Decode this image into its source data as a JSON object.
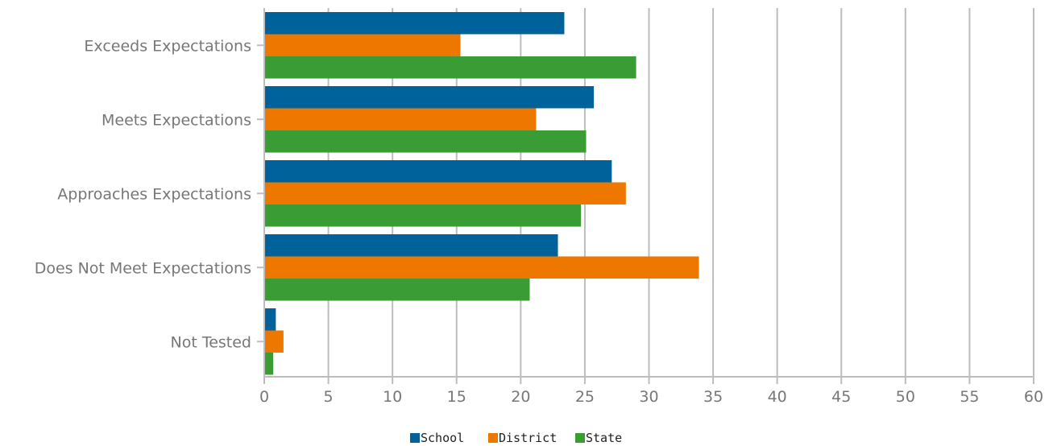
{
  "chart_data": {
    "type": "bar",
    "orientation": "horizontal",
    "categories": [
      "Exceeds Expectations",
      "Meets Expectations",
      "Approaches Expectations",
      "Does Not Meet Expectations",
      "Not Tested"
    ],
    "series": [
      {
        "name": "School",
        "color": "#00629b",
        "values": [
          23.4,
          25.7,
          27.1,
          22.9,
          0.9
        ]
      },
      {
        "name": "District",
        "color": "#ee7700",
        "values": [
          15.3,
          21.2,
          28.2,
          33.9,
          1.5
        ]
      },
      {
        "name": "State",
        "color": "#3a9c35",
        "values": [
          29.0,
          25.1,
          24.7,
          20.7,
          0.7
        ]
      }
    ],
    "xlim": [
      0,
      60
    ],
    "xticks": [
      0,
      5,
      10,
      15,
      20,
      25,
      30,
      35,
      40,
      45,
      50,
      55,
      60
    ],
    "grid": true,
    "legend_position": "bottom-center",
    "grid_color": "#bdbdbd",
    "axis_color": "#bdbdbd"
  }
}
